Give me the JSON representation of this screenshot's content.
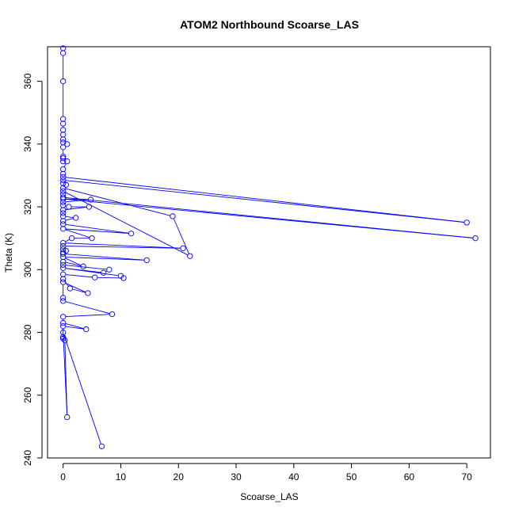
{
  "chart_data": {
    "type": "line",
    "title": "ATOM2 Northbound Scoarse_LAS",
    "xlabel": "Scoarse_LAS",
    "ylabel": "Theta (K)",
    "xlim": [
      -2.7,
      74.1
    ],
    "ylim": [
      240,
      371
    ],
    "xticks": [
      0,
      10,
      20,
      30,
      40,
      50,
      60,
      70
    ],
    "yticks": [
      240,
      260,
      280,
      300,
      320,
      340,
      360
    ],
    "grid": false,
    "series_color": "#0000ff",
    "series": [
      {
        "marker": "open-circle",
        "line": true,
        "points": [
          [
            0.0,
            370.5
          ],
          [
            0.0,
            369.0
          ],
          [
            0.0,
            360.0
          ],
          [
            0.0,
            348.0
          ],
          [
            0.0,
            346.5
          ],
          [
            0.0,
            344.5
          ],
          [
            0.0,
            343.0
          ],
          [
            0.0,
            341.5
          ],
          [
            0.0,
            340.5
          ],
          [
            0.7,
            340.0
          ],
          [
            0.0,
            339.0
          ],
          [
            0.0,
            336.0
          ],
          [
            0.0,
            335.5
          ],
          [
            0.0,
            334.5
          ],
          [
            0.7,
            334.5
          ],
          [
            0.0,
            332.0
          ],
          [
            0.0,
            330.5
          ],
          [
            0.0,
            329.5
          ],
          [
            70.0,
            315.0
          ],
          [
            0.0,
            328.5
          ],
          [
            0.0,
            327.5
          ],
          [
            0.5,
            327.0
          ],
          [
            0.0,
            326.0
          ],
          [
            19.0,
            317.0
          ],
          [
            22.0,
            304.3
          ],
          [
            0.0,
            325.0
          ],
          [
            0.0,
            324.0
          ],
          [
            0.0,
            323.0
          ],
          [
            71.5,
            310.0
          ],
          [
            0.0,
            322.5
          ],
          [
            4.8,
            322.3
          ],
          [
            0.0,
            321.5
          ],
          [
            0.0,
            320.5
          ],
          [
            1.0,
            320.0
          ],
          [
            4.5,
            320.0
          ],
          [
            0.0,
            319.0
          ],
          [
            0.0,
            318.0
          ],
          [
            0.0,
            317.0
          ],
          [
            2.2,
            316.5
          ],
          [
            0.0,
            315.5
          ],
          [
            0.0,
            314.5
          ],
          [
            11.8,
            311.5
          ],
          [
            0.0,
            313.0
          ],
          [
            5.0,
            310.0
          ],
          [
            1.5,
            310.0
          ],
          [
            0.0,
            308.5
          ],
          [
            20.8,
            306.8
          ],
          [
            0.0,
            307.5
          ],
          [
            0.0,
            306.5
          ],
          [
            0.5,
            306.0
          ],
          [
            0.0,
            305.5
          ],
          [
            0.0,
            305.0
          ],
          [
            14.5,
            303.0
          ],
          [
            0.0,
            304.0
          ],
          [
            3.5,
            301.0
          ],
          [
            0.0,
            302.5
          ],
          [
            0.0,
            301.5
          ],
          [
            8.0,
            300.0
          ],
          [
            7.0,
            299.0
          ],
          [
            0.0,
            300.5
          ],
          [
            10.0,
            298.0
          ],
          [
            10.5,
            297.3
          ],
          [
            5.5,
            297.5
          ],
          [
            0.0,
            298.5
          ],
          [
            0.0,
            297.0
          ],
          [
            1.2,
            294.0
          ],
          [
            4.3,
            292.5
          ],
          [
            0.0,
            296.0
          ],
          [
            0.0,
            291.0
          ],
          [
            0.0,
            290.0
          ],
          [
            8.5,
            285.8
          ],
          [
            0.0,
            285.0
          ],
          [
            0.0,
            283.0
          ],
          [
            4.0,
            281.0
          ],
          [
            0.0,
            282.0
          ],
          [
            0.0,
            278.5
          ],
          [
            0.0,
            278.0
          ],
          [
            0.3,
            277.5
          ],
          [
            0.7,
            253.0
          ],
          [
            0.0,
            280.0
          ],
          [
            6.7,
            243.7
          ]
        ]
      }
    ]
  }
}
